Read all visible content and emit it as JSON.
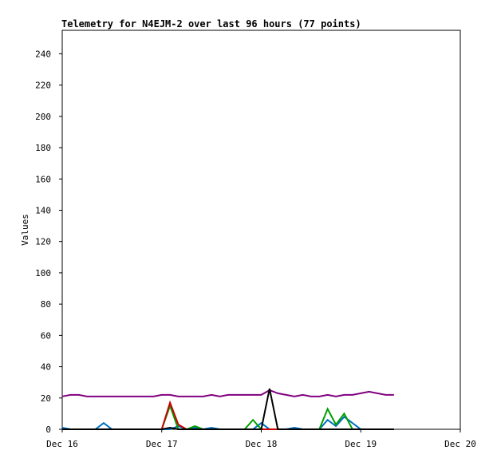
{
  "chart_data": {
    "type": "line",
    "title": "Telemetry for N4EJM-2 over last 96 hours (77 points)",
    "y_label": "Values",
    "x": [
      0,
      2,
      4,
      6,
      8,
      10,
      12,
      14,
      16,
      18,
      20,
      22,
      24,
      26,
      28,
      30,
      32,
      34,
      36,
      38,
      40,
      42,
      44,
      46,
      48,
      50,
      52,
      54,
      56,
      58,
      60,
      62,
      64,
      66,
      68,
      70,
      72,
      74,
      76,
      78,
      80
    ],
    "series": [
      {
        "color": "#0070c0",
        "values": [
          1,
          0,
          0,
          0,
          0,
          4,
          0,
          0,
          0,
          0,
          0,
          0,
          0,
          0,
          2,
          0,
          1,
          0,
          1,
          0,
          0,
          0,
          0,
          0,
          4,
          0,
          0,
          0,
          1,
          0,
          0,
          0,
          6,
          2,
          8,
          4,
          0,
          0,
          0,
          0,
          0
        ]
      },
      {
        "color": "#00a000",
        "values": [
          0,
          0,
          0,
          0,
          0,
          0,
          0,
          0,
          0,
          0,
          0,
          0,
          0,
          15,
          0,
          0,
          2,
          0,
          0,
          0,
          0,
          0,
          0,
          6,
          0,
          0,
          0,
          0,
          0,
          0,
          0,
          0,
          13,
          3,
          10,
          0,
          0,
          0,
          0,
          0,
          0
        ]
      },
      {
        "color": "#cc0000",
        "values": [
          0,
          0,
          0,
          0,
          0,
          0,
          0,
          0,
          0,
          0,
          0,
          0,
          0,
          17,
          3,
          0,
          0,
          0,
          0,
          0,
          0,
          0,
          0,
          0,
          0,
          0,
          0,
          0,
          0,
          0,
          0,
          0,
          0,
          0,
          0,
          0,
          0,
          0,
          0,
          0,
          0
        ]
      },
      {
        "color": "#800080",
        "values": [
          21,
          22,
          22,
          21,
          21,
          21,
          21,
          21,
          21,
          21,
          21,
          21,
          22,
          22,
          21,
          21,
          21,
          21,
          22,
          21,
          22,
          22,
          22,
          22,
          22,
          25,
          23,
          22,
          21,
          22,
          21,
          21,
          22,
          21,
          22,
          22,
          23,
          24,
          23,
          22,
          22
        ]
      },
      {
        "color": "#000000",
        "values": [
          0,
          0,
          0,
          0,
          0,
          0,
          0,
          0,
          0,
          0,
          0,
          0,
          0,
          1,
          0,
          0,
          0,
          0,
          0,
          0,
          0,
          0,
          0,
          0,
          0,
          26,
          0,
          0,
          0,
          0,
          0,
          0,
          0,
          0,
          0,
          0,
          0,
          0,
          0,
          0,
          0
        ]
      }
    ],
    "xlim": [
      0,
      96
    ],
    "xticks": [
      {
        "value": 0,
        "label": "Dec 16"
      },
      {
        "value": 24,
        "label": "Dec 17"
      },
      {
        "value": 48,
        "label": "Dec 18"
      },
      {
        "value": 72,
        "label": "Dec 19"
      },
      {
        "value": 96,
        "label": "Dec 20"
      }
    ],
    "ylim": [
      0,
      255
    ],
    "yticks": [
      0,
      20,
      40,
      60,
      80,
      100,
      120,
      140,
      160,
      180,
      200,
      220,
      240
    ]
  }
}
